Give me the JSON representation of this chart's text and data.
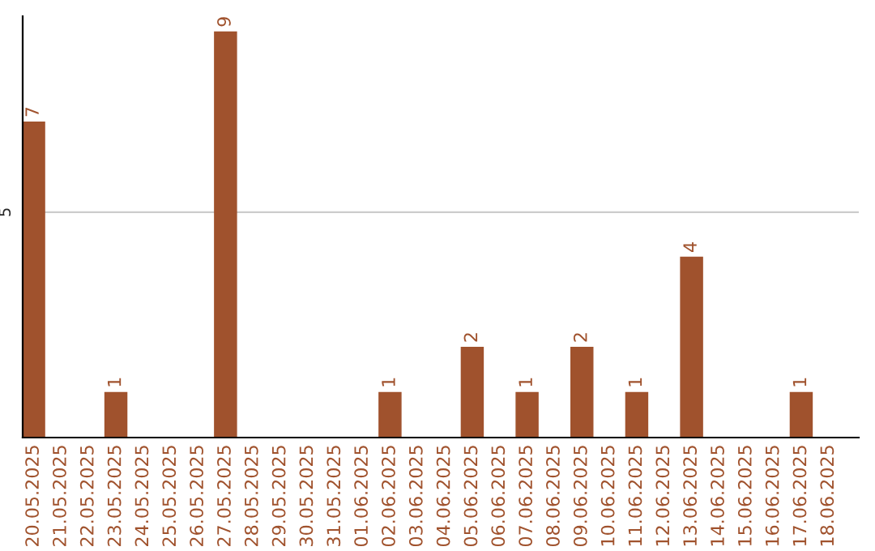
{
  "chart_data": {
    "type": "bar",
    "categories": [
      "20.05.2025",
      "21.05.2025",
      "22.05.2025",
      "23.05.2025",
      "24.05.2025",
      "25.05.2025",
      "26.05.2025",
      "27.05.2025",
      "28.05.2025",
      "29.05.2025",
      "30.05.2025",
      "31.05.2025",
      "01.06.2025",
      "02.06.2025",
      "03.06.2025",
      "04.06.2025",
      "05.06.2025",
      "06.06.2025",
      "07.06.2025",
      "08.06.2025",
      "09.06.2025",
      "10.06.2025",
      "11.06.2025",
      "12.06.2025",
      "13.06.2025",
      "14.06.2025",
      "15.06.2025",
      "16.06.2025",
      "17.06.2025",
      "18.06.2025"
    ],
    "values": [
      7,
      0,
      0,
      1,
      0,
      0,
      0,
      9,
      0,
      0,
      0,
      0,
      0,
      1,
      0,
      0,
      2,
      0,
      1,
      0,
      2,
      0,
      1,
      0,
      4,
      0,
      0,
      0,
      1,
      0
    ],
    "value_labels": [
      "7",
      null,
      null,
      "1",
      null,
      null,
      null,
      "9",
      null,
      null,
      null,
      null,
      null,
      "1",
      null,
      null,
      "2",
      null,
      "1",
      null,
      "2",
      null,
      "1",
      null,
      "4",
      null,
      null,
      null,
      "1",
      null
    ],
    "color": "#a0522d",
    "ylim": [
      0,
      9.35
    ],
    "yticks": [
      5
    ],
    "grid": "y"
  }
}
